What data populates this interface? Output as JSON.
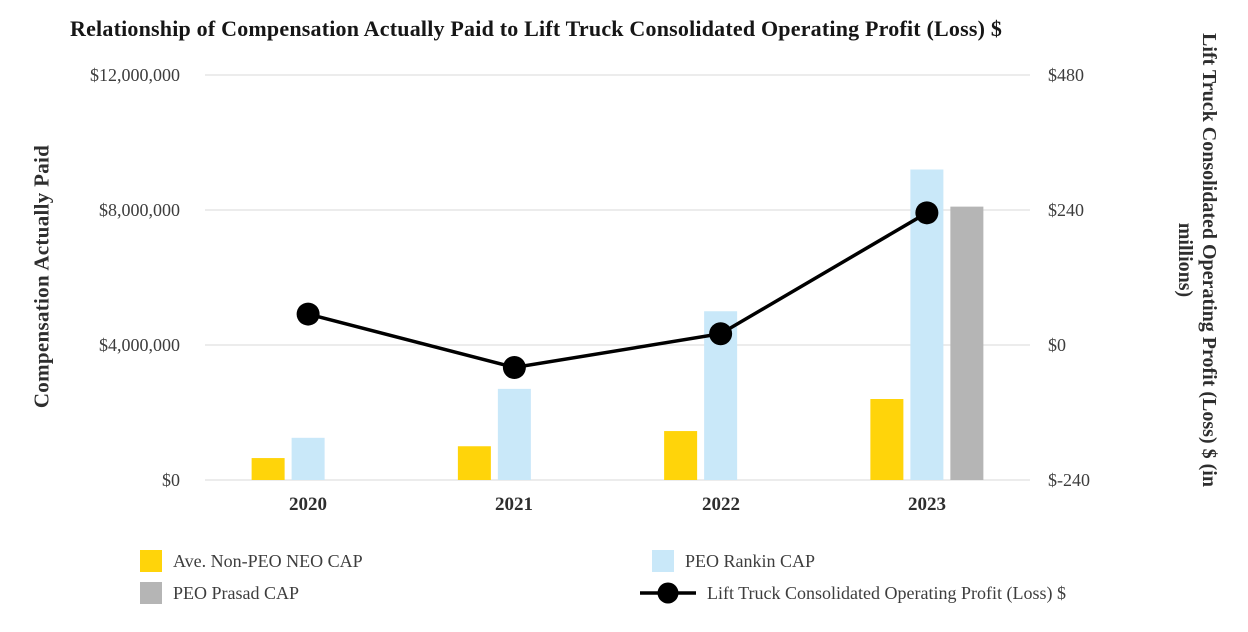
{
  "title": "Relationship of Compensation Actually Paid to Lift Truck Consolidated Operating Profit (Loss) $",
  "left_axis": {
    "label": "Compensation Actually Paid",
    "ticks": [
      "$12,000,000",
      "$8,000,000",
      "$4,000,000",
      "$0"
    ]
  },
  "right_axis": {
    "label": "Lift Truck Consolidated Operating Profit (Loss) $ (in millions)",
    "ticks": [
      "$480",
      "$240",
      "$0",
      "$-240"
    ]
  },
  "chart_data": {
    "type": "bar+line combo",
    "title": "Relationship of Compensation Actually Paid to Lift Truck Consolidated Operating Profit (Loss) $",
    "categories": [
      "2020",
      "2021",
      "2022",
      "2023"
    ],
    "left_axis_label": "Compensation Actually Paid",
    "right_axis_label": "Lift Truck Consolidated Operating Profit (Loss) $ (in millions)",
    "left_axis_range": [
      0,
      12000000
    ],
    "right_axis_range": [
      -240,
      480
    ],
    "grid": true,
    "grid_color": "#D9D9D9",
    "legend_position": "bottom",
    "series": [
      {
        "name": "Ave. Non-PEO NEO CAP",
        "type": "bar",
        "axis": "left",
        "color": "#FFD40A",
        "values": [
          650000,
          1000000,
          1450000,
          2400000
        ]
      },
      {
        "name": "PEO Rankin CAP",
        "type": "bar",
        "axis": "left",
        "color": "#C9E8F9",
        "values": [
          1250000,
          2700000,
          5000000,
          9200000
        ]
      },
      {
        "name": "PEO Prasad CAP",
        "type": "bar",
        "axis": "left",
        "color": "#B5B5B5",
        "values": [
          null,
          null,
          null,
          8100000
        ]
      },
      {
        "name": "Lift Truck Consolidated Operating Profit (Loss) $",
        "type": "line",
        "axis": "right",
        "color": "#000000",
        "values": [
          55,
          -40,
          20,
          235
        ]
      }
    ]
  },
  "colors": {
    "yellow_bar": "#FFD40A",
    "blue_bar": "#C9E8F9",
    "gray_bar": "#B5B5B5",
    "line": "#000000",
    "grid": "#D9D9D9",
    "text": "#3D3D3D"
  }
}
